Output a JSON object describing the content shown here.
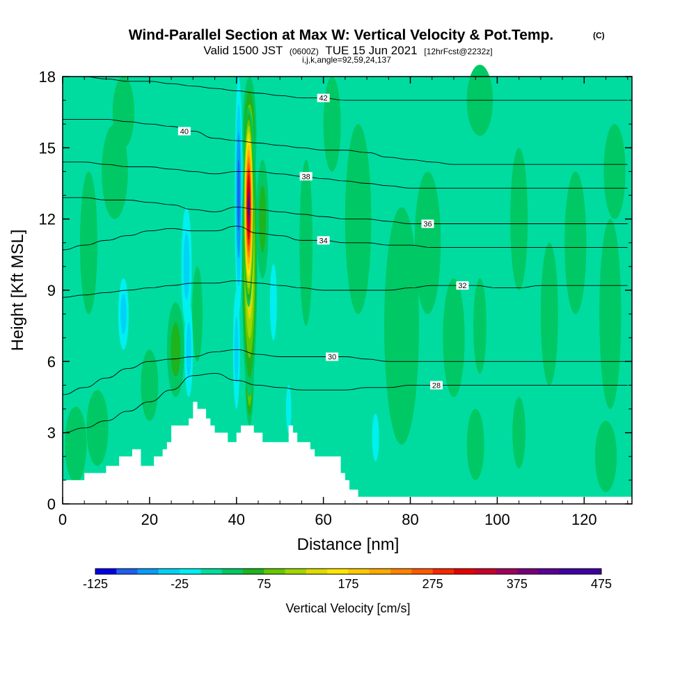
{
  "header": {
    "title": "Wind-Parallel Section at Max W: Vertical Velocity & Pot.Temp.",
    "copyright": "(C)",
    "valid_prefix": "Valid 1500 JST",
    "valid_utc": "(0600Z)",
    "valid_date": "TUE 15 Jun 2021",
    "forecast": "[12hrFcst@2232z]",
    "indices": "i,j,k,angle=92,59,24,137"
  },
  "chart_data": {
    "type": "heatmap",
    "xlabel": "Distance [nm]",
    "ylabel": "Height [Kft MSL]",
    "xlim": [
      0,
      131
    ],
    "ylim": [
      0,
      18
    ],
    "xticks": [
      0,
      20,
      40,
      60,
      80,
      100,
      120
    ],
    "yticks": [
      0,
      3,
      6,
      9,
      12,
      15,
      18
    ],
    "grid": false,
    "colorbar": {
      "label": "Vertical Velocity [cm/s]",
      "min": -125,
      "max": 475,
      "step": 25,
      "tick_labels": [
        -125,
        -25,
        75,
        175,
        275,
        375,
        475
      ],
      "colors": [
        "#0000e6",
        "#1e5ff0",
        "#0a9bf5",
        "#00d2f5",
        "#00f0f0",
        "#00dca0",
        "#00c864",
        "#1eb41e",
        "#64c800",
        "#a0d700",
        "#dcdc00",
        "#ffe600",
        "#ffc800",
        "#ffaa00",
        "#ff8200",
        "#ff5a00",
        "#f52800",
        "#e60000",
        "#c80028",
        "#a0005a",
        "#780078",
        "#5a0096",
        "#3c00a0",
        "#3c00a0"
      ]
    },
    "background_value": 0,
    "terrain": {
      "x": [
        0,
        3,
        3,
        5,
        5,
        10,
        10,
        13,
        13,
        16,
        16,
        18,
        18,
        21,
        21,
        23,
        23,
        24,
        24,
        25,
        25,
        29,
        29,
        30,
        30,
        31,
        31,
        33,
        33,
        34,
        34,
        35,
        35,
        38,
        38,
        40,
        40,
        41,
        41,
        44,
        44,
        46,
        46,
        52,
        52,
        53,
        53,
        54,
        54,
        57,
        57,
        58,
        58,
        64,
        64,
        65,
        65,
        66,
        66,
        68,
        68,
        131
      ],
      "y": [
        1.0,
        1.0,
        1.0,
        1.0,
        1.3,
        1.3,
        1.6,
        1.6,
        2.0,
        2.0,
        2.3,
        2.3,
        1.6,
        1.6,
        2.0,
        2.0,
        2.3,
        2.3,
        2.6,
        2.6,
        3.3,
        3.3,
        3.6,
        3.6,
        4.3,
        4.3,
        4.0,
        4.0,
        3.6,
        3.6,
        3.3,
        3.3,
        3.0,
        3.0,
        2.6,
        2.6,
        3.0,
        3.0,
        3.3,
        3.3,
        3.0,
        3.0,
        2.6,
        2.6,
        3.3,
        3.3,
        3.0,
        3.0,
        2.6,
        2.6,
        2.3,
        2.3,
        2.0,
        2.0,
        1.3,
        1.3,
        1.0,
        1.0,
        0.6,
        0.6,
        0.3,
        0.3
      ]
    },
    "velocity_features": [
      {
        "x": 42.8,
        "y": 12.5,
        "wx": 1.2,
        "wy": 4.2,
        "value": 420
      },
      {
        "x": 43.0,
        "y": 10.5,
        "wx": 1.8,
        "wy": 6.0,
        "value": 180
      },
      {
        "x": 43.0,
        "y": 15.5,
        "wx": 1.6,
        "wy": 2.5,
        "value": 120
      },
      {
        "x": 43.0,
        "y": 5.5,
        "wx": 1.0,
        "wy": 2.2,
        "value": 140
      },
      {
        "x": 46.0,
        "y": 12.0,
        "wx": 1.4,
        "wy": 2.5,
        "value": 70
      },
      {
        "x": 40.5,
        "y": 13.0,
        "wx": 0.9,
        "wy": 5.0,
        "value": -110
      },
      {
        "x": 40.0,
        "y": 6.5,
        "wx": 0.8,
        "wy": 2.5,
        "value": -60
      },
      {
        "x": 28.5,
        "y": 10.0,
        "wx": 1.2,
        "wy": 2.5,
        "value": -70
      },
      {
        "x": 29.0,
        "y": 6.5,
        "wx": 1.0,
        "wy": 2.0,
        "value": -50
      },
      {
        "x": 14.0,
        "y": 8.0,
        "wx": 1.2,
        "wy": 1.5,
        "value": -50
      },
      {
        "x": 48.5,
        "y": 8.5,
        "wx": 0.8,
        "wy": 1.6,
        "value": -35
      },
      {
        "x": 52.0,
        "y": 4.0,
        "wx": 0.6,
        "wy": 1.0,
        "value": -40
      },
      {
        "x": 72.0,
        "y": 2.8,
        "wx": 0.8,
        "wy": 1.0,
        "value": -45
      },
      {
        "x": 26.0,
        "y": 6.5,
        "wx": 2.0,
        "wy": 2.0,
        "value": 50
      },
      {
        "x": 31.0,
        "y": 8.0,
        "wx": 1.2,
        "wy": 2.0,
        "value": 40
      },
      {
        "x": 3.0,
        "y": 2.5,
        "wx": 2.5,
        "wy": 1.6,
        "value": 40
      },
      {
        "x": 8.0,
        "y": 3.2,
        "wx": 2.5,
        "wy": 1.6,
        "value": 35
      },
      {
        "x": 6.0,
        "y": 11.0,
        "wx": 2.0,
        "wy": 3.0,
        "value": 28
      },
      {
        "x": 12.0,
        "y": 14.0,
        "wx": 3.0,
        "wy": 2.0,
        "value": 26
      },
      {
        "x": 14.0,
        "y": 16.5,
        "wx": 2.5,
        "wy": 1.5,
        "value": 26
      },
      {
        "x": 20.0,
        "y": 5.0,
        "wx": 2.0,
        "wy": 1.5,
        "value": 30
      },
      {
        "x": 56.0,
        "y": 11.0,
        "wx": 1.5,
        "wy": 3.5,
        "value": 30
      },
      {
        "x": 68.0,
        "y": 12.0,
        "wx": 3.0,
        "wy": 4.0,
        "value": 26
      },
      {
        "x": 78.0,
        "y": 7.5,
        "wx": 4.0,
        "wy": 5.0,
        "value": 28
      },
      {
        "x": 84.0,
        "y": 11.0,
        "wx": 3.0,
        "wy": 3.0,
        "value": 26
      },
      {
        "x": 90.0,
        "y": 7.0,
        "wx": 2.5,
        "wy": 2.5,
        "value": 28
      },
      {
        "x": 96.0,
        "y": 7.5,
        "wx": 1.5,
        "wy": 2.0,
        "value": 28
      },
      {
        "x": 105.0,
        "y": 12.0,
        "wx": 2.0,
        "wy": 3.0,
        "value": 26
      },
      {
        "x": 112.0,
        "y": 8.0,
        "wx": 2.0,
        "wy": 3.0,
        "value": 26
      },
      {
        "x": 118.0,
        "y": 11.0,
        "wx": 2.5,
        "wy": 3.0,
        "value": 26
      },
      {
        "x": 126.0,
        "y": 8.0,
        "wx": 2.5,
        "wy": 4.0,
        "value": 28
      },
      {
        "x": 127.0,
        "y": 14.0,
        "wx": 2.5,
        "wy": 2.0,
        "value": 26
      },
      {
        "x": 125.0,
        "y": 2.0,
        "wx": 2.5,
        "wy": 1.5,
        "value": 35
      },
      {
        "x": 95.0,
        "y": 2.5,
        "wx": 2.0,
        "wy": 1.5,
        "value": 30
      },
      {
        "x": 105.0,
        "y": 3.0,
        "wx": 1.5,
        "wy": 1.5,
        "value": 30
      },
      {
        "x": 62.0,
        "y": 16.0,
        "wx": 2.0,
        "wy": 2.0,
        "value": 26
      },
      {
        "x": 96.0,
        "y": 17.0,
        "wx": 3.0,
        "wy": 1.5,
        "value": 26
      }
    ],
    "isentropes": [
      {
        "label": "28",
        "y": [
          3.0,
          3.2,
          3.5,
          3.9,
          4.3,
          4.8,
          5.4,
          5.5,
          5.2,
          5.0,
          4.9,
          4.8,
          4.8,
          4.8,
          4.9,
          4.9,
          5.0,
          5.0,
          5.0,
          5.0,
          5.0,
          5.0,
          5.0,
          5.0,
          5.0,
          5.0,
          5.0
        ],
        "label_x": 86
      },
      {
        "label": "30",
        "y": [
          4.6,
          4.9,
          5.3,
          5.7,
          6.0,
          6.1,
          6.2,
          6.4,
          6.5,
          6.3,
          6.2,
          6.2,
          6.2,
          6.2,
          6.1,
          6.0,
          6.0,
          6.0,
          6.0,
          6.0,
          6.0,
          6.0,
          6.0,
          6.0,
          6.0,
          6.0,
          6.0
        ],
        "label_x": 62
      },
      {
        "label": "32",
        "y": [
          8.7,
          8.8,
          8.9,
          9.0,
          9.1,
          9.2,
          9.3,
          9.3,
          9.4,
          9.3,
          9.2,
          9.1,
          9.0,
          9.0,
          9.0,
          9.0,
          9.1,
          9.2,
          9.2,
          9.2,
          9.1,
          9.1,
          9.2,
          9.2,
          9.2,
          9.2,
          9.2
        ],
        "label_x": 92
      },
      {
        "label": "34",
        "y": [
          10.7,
          10.9,
          11.1,
          11.3,
          11.5,
          11.6,
          11.5,
          11.5,
          11.7,
          11.4,
          11.3,
          11.1,
          11.1,
          11.0,
          11.0,
          10.9,
          10.9,
          10.8,
          10.8,
          10.8,
          10.8,
          10.8,
          10.8,
          10.8,
          10.8,
          10.8,
          10.8
        ],
        "label_x": 60
      },
      {
        "label": "36",
        "y": [
          12.9,
          12.9,
          12.8,
          12.8,
          12.7,
          12.6,
          12.4,
          12.3,
          12.5,
          12.4,
          12.3,
          12.2,
          12.1,
          12.0,
          12.0,
          11.9,
          11.8,
          11.8,
          11.8,
          11.8,
          11.8,
          11.8,
          11.8,
          11.8,
          11.8,
          11.8,
          11.8
        ],
        "label_x": 84
      },
      {
        "label": "38",
        "y": [
          14.4,
          14.4,
          14.3,
          14.2,
          14.2,
          14.1,
          14.0,
          13.9,
          14.0,
          14.0,
          13.9,
          13.8,
          13.7,
          13.6,
          13.5,
          13.4,
          13.3,
          13.3,
          13.3,
          13.3,
          13.3,
          13.3,
          13.3,
          13.3,
          13.3,
          13.3,
          13.3
        ],
        "label_x": 56
      },
      {
        "label": "40",
        "y": [
          16.2,
          16.2,
          16.2,
          16.1,
          16.0,
          15.9,
          15.7,
          15.4,
          15.3,
          15.2,
          15.1,
          15.0,
          14.9,
          14.9,
          14.8,
          14.6,
          14.5,
          14.4,
          14.3,
          14.3,
          14.3,
          14.3,
          14.3,
          14.3,
          14.3,
          14.3,
          14.3
        ],
        "label_x": 28
      },
      {
        "label": "42",
        "y": [
          18.0,
          18.0,
          17.9,
          17.8,
          17.8,
          17.7,
          17.6,
          17.5,
          17.4,
          17.3,
          17.2,
          17.1,
          17.1,
          17.0,
          17.0,
          17.0,
          17.0,
          17.0,
          17.0,
          17.0,
          17.0,
          17.0,
          17.0,
          17.0,
          17.0,
          17.0,
          17.0
        ],
        "label_x": 60
      }
    ],
    "isentrope_x_step": 5
  }
}
